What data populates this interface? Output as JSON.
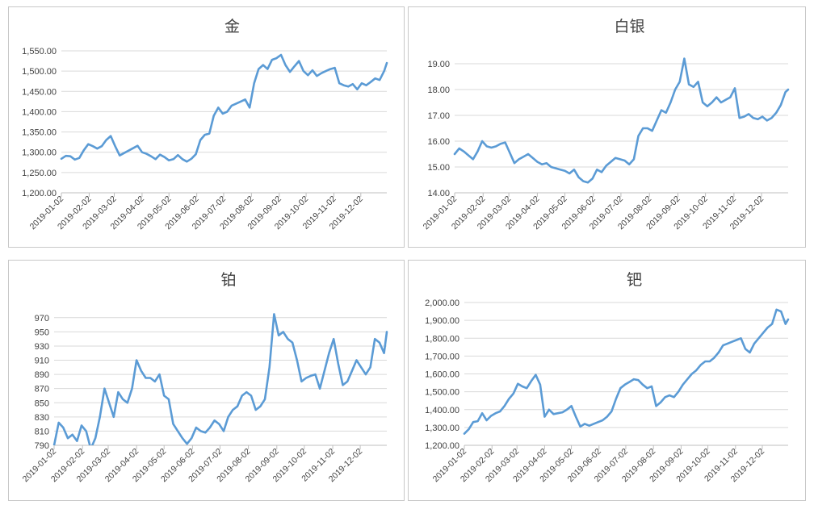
{
  "colors": {
    "line": "#5b9bd5",
    "grid": "#d9d9d9",
    "axis": "#bfbfbf",
    "text": "#404040"
  },
  "chart_data": [
    {
      "type": "line",
      "title": "金",
      "grid": true,
      "legend": "none",
      "ylim": [
        1200,
        1550
      ],
      "yticks": [
        1200,
        1250,
        1300,
        1350,
        1400,
        1450,
        1500,
        1550
      ],
      "ytick_labels": [
        "1,200.00",
        "1,250.00",
        "1,300.00",
        "1,350.00",
        "1,400.00",
        "1,450.00",
        "1,500.00",
        "1,550.00"
      ],
      "xlim": [
        "2019-01-02",
        "2019-12-31"
      ],
      "categories": [
        "2019-01-02",
        "2019-02-02",
        "2019-03-02",
        "2019-04-02",
        "2019-05-02",
        "2019-06-02",
        "2019-07-02",
        "2019-08-02",
        "2019-09-02",
        "2019-10-02",
        "2019-11-02",
        "2019-12-02"
      ],
      "series": [
        {
          "x": [
            "2019-01-02",
            "2019-01-07",
            "2019-01-12",
            "2019-01-17",
            "2019-01-22",
            "2019-01-27",
            "2019-02-01",
            "2019-02-06",
            "2019-02-11",
            "2019-02-16",
            "2019-02-21",
            "2019-02-26",
            "2019-03-03",
            "2019-03-08",
            "2019-03-13",
            "2019-03-18",
            "2019-03-23",
            "2019-03-28",
            "2019-04-02",
            "2019-04-07",
            "2019-04-12",
            "2019-04-17",
            "2019-04-22",
            "2019-04-27",
            "2019-05-02",
            "2019-05-07",
            "2019-05-12",
            "2019-05-17",
            "2019-05-22",
            "2019-05-27",
            "2019-06-01",
            "2019-06-06",
            "2019-06-11",
            "2019-06-16",
            "2019-06-21",
            "2019-06-26",
            "2019-07-01",
            "2019-07-06",
            "2019-07-11",
            "2019-07-16",
            "2019-07-21",
            "2019-07-26",
            "2019-07-31",
            "2019-08-05",
            "2019-08-10",
            "2019-08-15",
            "2019-08-20",
            "2019-08-25",
            "2019-08-30",
            "2019-09-04",
            "2019-09-09",
            "2019-09-14",
            "2019-09-19",
            "2019-09-24",
            "2019-09-29",
            "2019-10-04",
            "2019-10-09",
            "2019-10-14",
            "2019-10-19",
            "2019-10-24",
            "2019-10-29",
            "2019-11-03",
            "2019-11-08",
            "2019-11-13",
            "2019-11-18",
            "2019-11-23",
            "2019-11-28",
            "2019-12-03",
            "2019-12-08",
            "2019-12-13",
            "2019-12-18",
            "2019-12-23",
            "2019-12-28",
            "2019-12-31"
          ],
          "values": [
            1284,
            1291,
            1290,
            1282,
            1286,
            1305,
            1320,
            1315,
            1309,
            1315,
            1330,
            1340,
            1315,
            1292,
            1298,
            1304,
            1310,
            1316,
            1300,
            1296,
            1290,
            1283,
            1294,
            1288,
            1280,
            1283,
            1293,
            1283,
            1277,
            1284,
            1295,
            1330,
            1343,
            1346,
            1390,
            1410,
            1395,
            1400,
            1415,
            1420,
            1425,
            1430,
            1410,
            1470,
            1505,
            1515,
            1505,
            1528,
            1532,
            1540,
            1515,
            1498,
            1512,
            1525,
            1500,
            1490,
            1502,
            1488,
            1495,
            1500,
            1505,
            1508,
            1470,
            1465,
            1462,
            1468,
            1455,
            1470,
            1465,
            1473,
            1482,
            1478,
            1500,
            1520
          ]
        }
      ]
    },
    {
      "type": "line",
      "title": "白银",
      "grid": true,
      "legend": "none",
      "ylim": [
        14,
        19
      ],
      "yticks": [
        14,
        15,
        16,
        17,
        18,
        19
      ],
      "ytick_labels": [
        "14.00",
        "15.00",
        "16.00",
        "17.00",
        "18.00",
        "19.00"
      ],
      "xlim": [
        "2019-01-02",
        "2019-12-31"
      ],
      "categories": [
        "2019-01-02",
        "2019-02-02",
        "2019-03-02",
        "2019-04-02",
        "2019-05-02",
        "2019-06-02",
        "2019-07-02",
        "2019-08-02",
        "2019-09-02",
        "2019-10-02",
        "2019-11-02",
        "2019-12-02"
      ],
      "series": [
        {
          "x": [
            "2019-01-02",
            "2019-01-07",
            "2019-01-12",
            "2019-01-17",
            "2019-01-22",
            "2019-01-27",
            "2019-02-01",
            "2019-02-06",
            "2019-02-11",
            "2019-02-16",
            "2019-02-21",
            "2019-02-26",
            "2019-03-03",
            "2019-03-08",
            "2019-03-13",
            "2019-03-18",
            "2019-03-23",
            "2019-03-28",
            "2019-04-02",
            "2019-04-07",
            "2019-04-12",
            "2019-04-17",
            "2019-04-22",
            "2019-04-27",
            "2019-05-02",
            "2019-05-07",
            "2019-05-12",
            "2019-05-17",
            "2019-05-22",
            "2019-05-27",
            "2019-06-01",
            "2019-06-06",
            "2019-06-11",
            "2019-06-16",
            "2019-06-21",
            "2019-06-26",
            "2019-07-01",
            "2019-07-06",
            "2019-07-11",
            "2019-07-16",
            "2019-07-21",
            "2019-07-26",
            "2019-07-31",
            "2019-08-05",
            "2019-08-10",
            "2019-08-15",
            "2019-08-20",
            "2019-08-25",
            "2019-08-30",
            "2019-09-04",
            "2019-09-09",
            "2019-09-14",
            "2019-09-19",
            "2019-09-24",
            "2019-09-29",
            "2019-10-04",
            "2019-10-09",
            "2019-10-14",
            "2019-10-19",
            "2019-10-24",
            "2019-10-29",
            "2019-11-03",
            "2019-11-08",
            "2019-11-13",
            "2019-11-18",
            "2019-11-23",
            "2019-11-28",
            "2019-12-03",
            "2019-12-08",
            "2019-12-13",
            "2019-12-18",
            "2019-12-23",
            "2019-12-28",
            "2019-12-31"
          ],
          "values": [
            15.5,
            15.72,
            15.6,
            15.45,
            15.3,
            15.6,
            16.0,
            15.8,
            15.75,
            15.8,
            15.9,
            15.95,
            15.55,
            15.15,
            15.3,
            15.4,
            15.5,
            15.35,
            15.2,
            15.1,
            15.15,
            15.0,
            14.95,
            14.9,
            14.85,
            14.75,
            14.9,
            14.6,
            14.45,
            14.4,
            14.55,
            14.9,
            14.8,
            15.05,
            15.2,
            15.35,
            15.3,
            15.25,
            15.1,
            15.3,
            16.2,
            16.5,
            16.5,
            16.4,
            16.8,
            17.2,
            17.1,
            17.5,
            18.0,
            18.3,
            19.2,
            18.2,
            18.1,
            18.3,
            17.5,
            17.35,
            17.5,
            17.7,
            17.5,
            17.6,
            17.7,
            18.05,
            16.9,
            16.95,
            17.05,
            16.9,
            16.85,
            16.95,
            16.8,
            16.9,
            17.1,
            17.4,
            17.9,
            18.0
          ]
        }
      ]
    },
    {
      "type": "line",
      "title": "铂",
      "grid": true,
      "legend": "none",
      "ylim": [
        790,
        980
      ],
      "yticks": [
        790,
        810,
        830,
        850,
        870,
        890,
        910,
        930,
        950,
        970
      ],
      "ytick_labels": [
        "790",
        "810",
        "830",
        "850",
        "870",
        "890",
        "910",
        "930",
        "950",
        "970"
      ],
      "xlim": [
        "2019-01-02",
        "2019-12-31"
      ],
      "categories": [
        "2019-01-02",
        "2019-02-02",
        "2019-03-02",
        "2019-04-02",
        "2019-05-02",
        "2019-06-02",
        "2019-07-02",
        "2019-08-02",
        "2019-09-02",
        "2019-10-02",
        "2019-11-02",
        "2019-12-02"
      ],
      "series": [
        {
          "x": [
            "2019-01-02",
            "2019-01-07",
            "2019-01-12",
            "2019-01-17",
            "2019-01-22",
            "2019-01-27",
            "2019-02-01",
            "2019-02-06",
            "2019-02-11",
            "2019-02-16",
            "2019-02-21",
            "2019-02-26",
            "2019-03-03",
            "2019-03-08",
            "2019-03-13",
            "2019-03-18",
            "2019-03-23",
            "2019-03-28",
            "2019-04-02",
            "2019-04-07",
            "2019-04-12",
            "2019-04-17",
            "2019-04-22",
            "2019-04-27",
            "2019-05-02",
            "2019-05-07",
            "2019-05-12",
            "2019-05-17",
            "2019-05-22",
            "2019-05-27",
            "2019-06-01",
            "2019-06-06",
            "2019-06-11",
            "2019-06-16",
            "2019-06-21",
            "2019-06-26",
            "2019-07-01",
            "2019-07-06",
            "2019-07-11",
            "2019-07-16",
            "2019-07-21",
            "2019-07-26",
            "2019-07-31",
            "2019-08-05",
            "2019-08-10",
            "2019-08-15",
            "2019-08-20",
            "2019-08-25",
            "2019-08-30",
            "2019-09-04",
            "2019-09-09",
            "2019-09-14",
            "2019-09-19",
            "2019-09-24",
            "2019-09-29",
            "2019-10-04",
            "2019-10-09",
            "2019-10-14",
            "2019-10-19",
            "2019-10-24",
            "2019-10-29",
            "2019-11-03",
            "2019-11-08",
            "2019-11-13",
            "2019-11-18",
            "2019-11-23",
            "2019-11-28",
            "2019-12-03",
            "2019-12-08",
            "2019-12-13",
            "2019-12-18",
            "2019-12-23",
            "2019-12-28",
            "2019-12-31"
          ],
          "values": [
            790,
            822,
            815,
            800,
            805,
            796,
            818,
            810,
            785,
            800,
            830,
            870,
            850,
            830,
            865,
            855,
            850,
            870,
            910,
            895,
            885,
            885,
            880,
            890,
            860,
            855,
            820,
            810,
            800,
            792,
            800,
            815,
            810,
            808,
            815,
            825,
            820,
            810,
            830,
            840,
            845,
            860,
            865,
            860,
            840,
            845,
            855,
            900,
            975,
            945,
            950,
            940,
            935,
            910,
            880,
            885,
            888,
            890,
            870,
            895,
            920,
            940,
            905,
            875,
            880,
            895,
            910,
            900,
            890,
            900,
            940,
            935,
            920,
            950
          ]
        }
      ]
    },
    {
      "type": "line",
      "title": "钯",
      "grid": true,
      "legend": "none",
      "ylim": [
        1200,
        2000
      ],
      "yticks": [
        1200,
        1300,
        1400,
        1500,
        1600,
        1700,
        1800,
        1900,
        2000
      ],
      "ytick_labels": [
        "1,200.00",
        "1,300.00",
        "1,400.00",
        "1,500.00",
        "1,600.00",
        "1,700.00",
        "1,800.00",
        "1,900.00",
        "2,000.00"
      ],
      "xlim": [
        "2019-01-02",
        "2019-12-31"
      ],
      "categories": [
        "2019-01-02",
        "2019-02-02",
        "2019-03-02",
        "2019-04-02",
        "2019-05-02",
        "2019-06-02",
        "2019-07-02",
        "2019-08-02",
        "2019-09-02",
        "2019-10-02",
        "2019-11-02",
        "2019-12-02"
      ],
      "series": [
        {
          "x": [
            "2019-01-02",
            "2019-01-07",
            "2019-01-12",
            "2019-01-17",
            "2019-01-22",
            "2019-01-27",
            "2019-02-01",
            "2019-02-06",
            "2019-02-11",
            "2019-02-16",
            "2019-02-21",
            "2019-02-26",
            "2019-03-03",
            "2019-03-08",
            "2019-03-13",
            "2019-03-18",
            "2019-03-23",
            "2019-03-28",
            "2019-04-02",
            "2019-04-07",
            "2019-04-12",
            "2019-04-17",
            "2019-04-22",
            "2019-04-27",
            "2019-05-02",
            "2019-05-07",
            "2019-05-12",
            "2019-05-17",
            "2019-05-22",
            "2019-05-27",
            "2019-06-01",
            "2019-06-06",
            "2019-06-11",
            "2019-06-16",
            "2019-06-21",
            "2019-06-26",
            "2019-07-01",
            "2019-07-06",
            "2019-07-11",
            "2019-07-16",
            "2019-07-21",
            "2019-07-26",
            "2019-07-31",
            "2019-08-05",
            "2019-08-10",
            "2019-08-15",
            "2019-08-20",
            "2019-08-25",
            "2019-08-30",
            "2019-09-04",
            "2019-09-09",
            "2019-09-14",
            "2019-09-19",
            "2019-09-24",
            "2019-09-29",
            "2019-10-04",
            "2019-10-09",
            "2019-10-14",
            "2019-10-19",
            "2019-10-24",
            "2019-10-29",
            "2019-11-03",
            "2019-11-08",
            "2019-11-13",
            "2019-11-18",
            "2019-11-23",
            "2019-11-28",
            "2019-12-03",
            "2019-12-08",
            "2019-12-13",
            "2019-12-18",
            "2019-12-23",
            "2019-12-28",
            "2019-12-31"
          ],
          "values": [
            1265,
            1290,
            1330,
            1335,
            1380,
            1340,
            1365,
            1380,
            1390,
            1420,
            1460,
            1490,
            1545,
            1530,
            1520,
            1560,
            1595,
            1540,
            1360,
            1400,
            1375,
            1380,
            1385,
            1400,
            1420,
            1360,
            1305,
            1320,
            1310,
            1320,
            1330,
            1340,
            1360,
            1390,
            1460,
            1520,
            1540,
            1555,
            1570,
            1565,
            1540,
            1520,
            1530,
            1420,
            1440,
            1470,
            1480,
            1470,
            1500,
            1540,
            1570,
            1600,
            1620,
            1650,
            1670,
            1670,
            1690,
            1720,
            1760,
            1770,
            1780,
            1790,
            1800,
            1740,
            1720,
            1770,
            1800,
            1830,
            1860,
            1880,
            1960,
            1950,
            1880,
            1905
          ]
        }
      ]
    }
  ]
}
